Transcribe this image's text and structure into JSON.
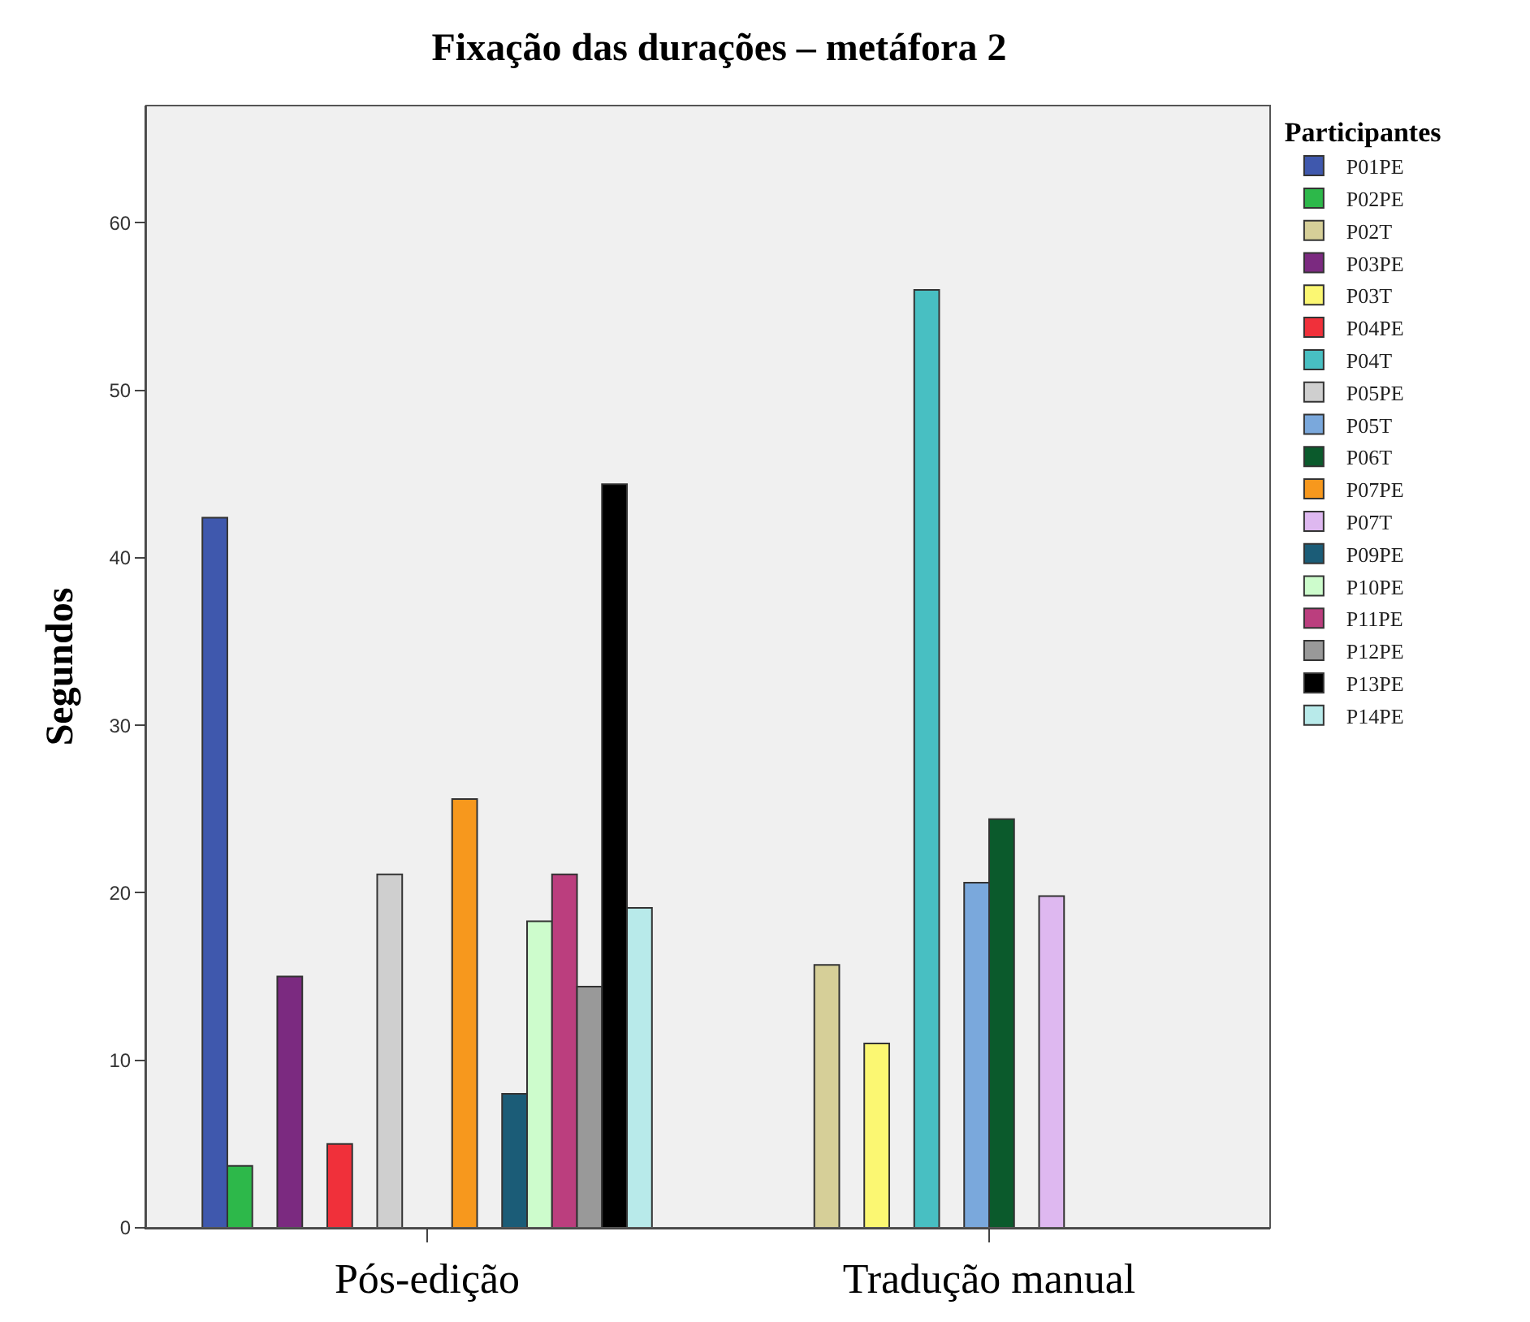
{
  "chart_data": {
    "type": "bar",
    "title": "Fixação das durações – metáfora 2",
    "ylabel": "Segundos",
    "legend_title": "Participantes",
    "categories": [
      "Pós-edição",
      "Tradução manual"
    ],
    "series": [
      {
        "name": "P01PE",
        "color": "#3f58ad",
        "values": [
          42.4,
          null
        ]
      },
      {
        "name": "P02PE",
        "color": "#2db84a",
        "values": [
          3.7,
          null
        ]
      },
      {
        "name": "P02T",
        "color": "#d6cf98",
        "values": [
          null,
          15.7
        ]
      },
      {
        "name": "P03PE",
        "color": "#7b2a80",
        "values": [
          15.0,
          null
        ]
      },
      {
        "name": "P03T",
        "color": "#fbf772",
        "values": [
          null,
          11.0
        ]
      },
      {
        "name": "P04PE",
        "color": "#f0303a",
        "values": [
          5.0,
          null
        ]
      },
      {
        "name": "P04T",
        "color": "#48bfc2",
        "values": [
          null,
          56.0
        ]
      },
      {
        "name": "P05PE",
        "color": "#cfcfcf",
        "values": [
          21.1,
          null
        ]
      },
      {
        "name": "P05T",
        "color": "#7aa8dc",
        "values": [
          null,
          20.6
        ]
      },
      {
        "name": "P06T",
        "color": "#0b5a2c",
        "values": [
          null,
          24.4
        ]
      },
      {
        "name": "P07PE",
        "color": "#f7981d",
        "values": [
          25.6,
          null
        ]
      },
      {
        "name": "P07T",
        "color": "#deb8f0",
        "values": [
          null,
          19.8
        ]
      },
      {
        "name": "P09PE",
        "color": "#1b5c77",
        "values": [
          8.0,
          null
        ]
      },
      {
        "name": "P10PE",
        "color": "#cdfccc",
        "values": [
          18.3,
          null
        ]
      },
      {
        "name": "P11PE",
        "color": "#bb3e7e",
        "values": [
          21.1,
          null
        ]
      },
      {
        "name": "P12PE",
        "color": "#999999",
        "values": [
          14.4,
          null
        ]
      },
      {
        "name": "P13PE",
        "color": "#000000",
        "values": [
          44.4,
          null
        ]
      },
      {
        "name": "P14PE",
        "color": "#b8eaea",
        "values": [
          19.1,
          null
        ]
      }
    ],
    "ylim": [
      0,
      67
    ],
    "yticks": [
      0,
      10,
      20,
      30,
      40,
      50,
      60
    ],
    "grid": false,
    "legend": "top right"
  }
}
